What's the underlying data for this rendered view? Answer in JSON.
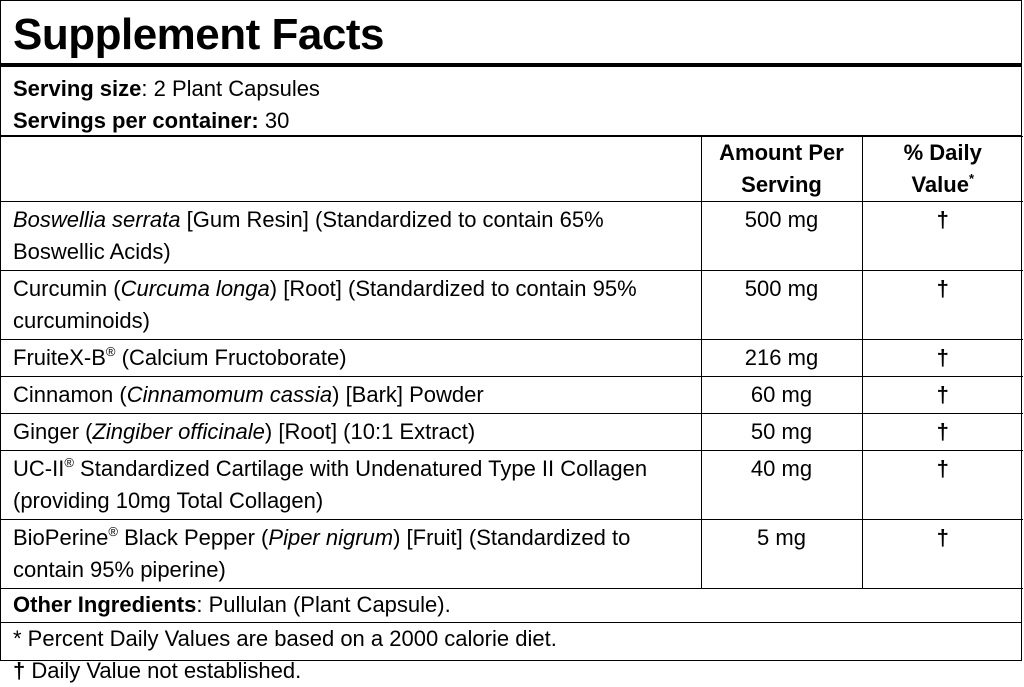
{
  "title": "Supplement Facts",
  "serving": {
    "size_label": "Serving size",
    "size_value": ": 2 Plant Capsules",
    "per_container_label": "Servings per container:",
    "per_container_value": " 30"
  },
  "headers": {
    "amount_line1": "Amount Per",
    "amount_line2": "Serving",
    "dv_line1": "% Daily",
    "dv_line2": "Value",
    "dv_mark": "*"
  },
  "rows": [
    {
      "parts": [
        {
          "t": "Boswellia serrata",
          "i": true
        },
        {
          "t": " [Gum Resin] (Standardized to contain 65% Boswellic Acids)",
          "i": false
        }
      ],
      "amount": "500 mg",
      "dv": "†",
      "lines": 2
    },
    {
      "parts": [
        {
          "t": "Curcumin (",
          "i": false
        },
        {
          "t": "Curcuma longa",
          "i": true
        },
        {
          "t": ") [Root] (Standardized to contain 95% curcuminoids)",
          "i": false
        }
      ],
      "amount": "500 mg",
      "dv": "†",
      "lines": 2
    },
    {
      "parts": [
        {
          "t": "FruiteX-B",
          "i": false
        },
        {
          "t": "®",
          "sup": true
        },
        {
          "t": " (Calcium Fructoborate)",
          "i": false
        }
      ],
      "amount": "216 mg",
      "dv": "†",
      "lines": 1
    },
    {
      "parts": [
        {
          "t": "Cinnamon (",
          "i": false
        },
        {
          "t": "Cinnamomum cassia",
          "i": true
        },
        {
          "t": ") [Bark] Powder",
          "i": false
        }
      ],
      "amount": "60 mg",
      "dv": "†",
      "lines": 1
    },
    {
      "parts": [
        {
          "t": "Ginger (",
          "i": false
        },
        {
          "t": "Zingiber officinale",
          "i": true
        },
        {
          "t": ") [Root] (10:1 Extract)",
          "i": false
        }
      ],
      "amount": "50 mg",
      "dv": "†",
      "lines": 1
    },
    {
      "parts": [
        {
          "t": "UC-II",
          "i": false
        },
        {
          "t": "®",
          "sup": true
        },
        {
          "t": " Standardized Cartilage with Undenatured Type II Collagen (providing 10mg Total Collagen)",
          "i": false
        }
      ],
      "amount": "40 mg",
      "dv": "†",
      "lines": 2
    },
    {
      "parts": [
        {
          "t": "BioPerine",
          "i": false
        },
        {
          "t": "®",
          "sup": true
        },
        {
          "t": " Black Pepper (",
          "i": false
        },
        {
          "t": "Piper nigrum",
          "i": true
        },
        {
          "t": ") [Fruit] (Standardized to contain 95% piperine)",
          "i": false
        }
      ],
      "amount": "5 mg",
      "dv": "†",
      "lines": 2
    }
  ],
  "other": {
    "label": "Other Ingredients",
    "value": ": Pullulan (Plant Capsule)."
  },
  "footnotes": {
    "percent": "* Percent Daily Values are based on a 2000 calorie diet.",
    "dagger_mark": "†",
    "dagger_text": " Daily Value not established."
  }
}
